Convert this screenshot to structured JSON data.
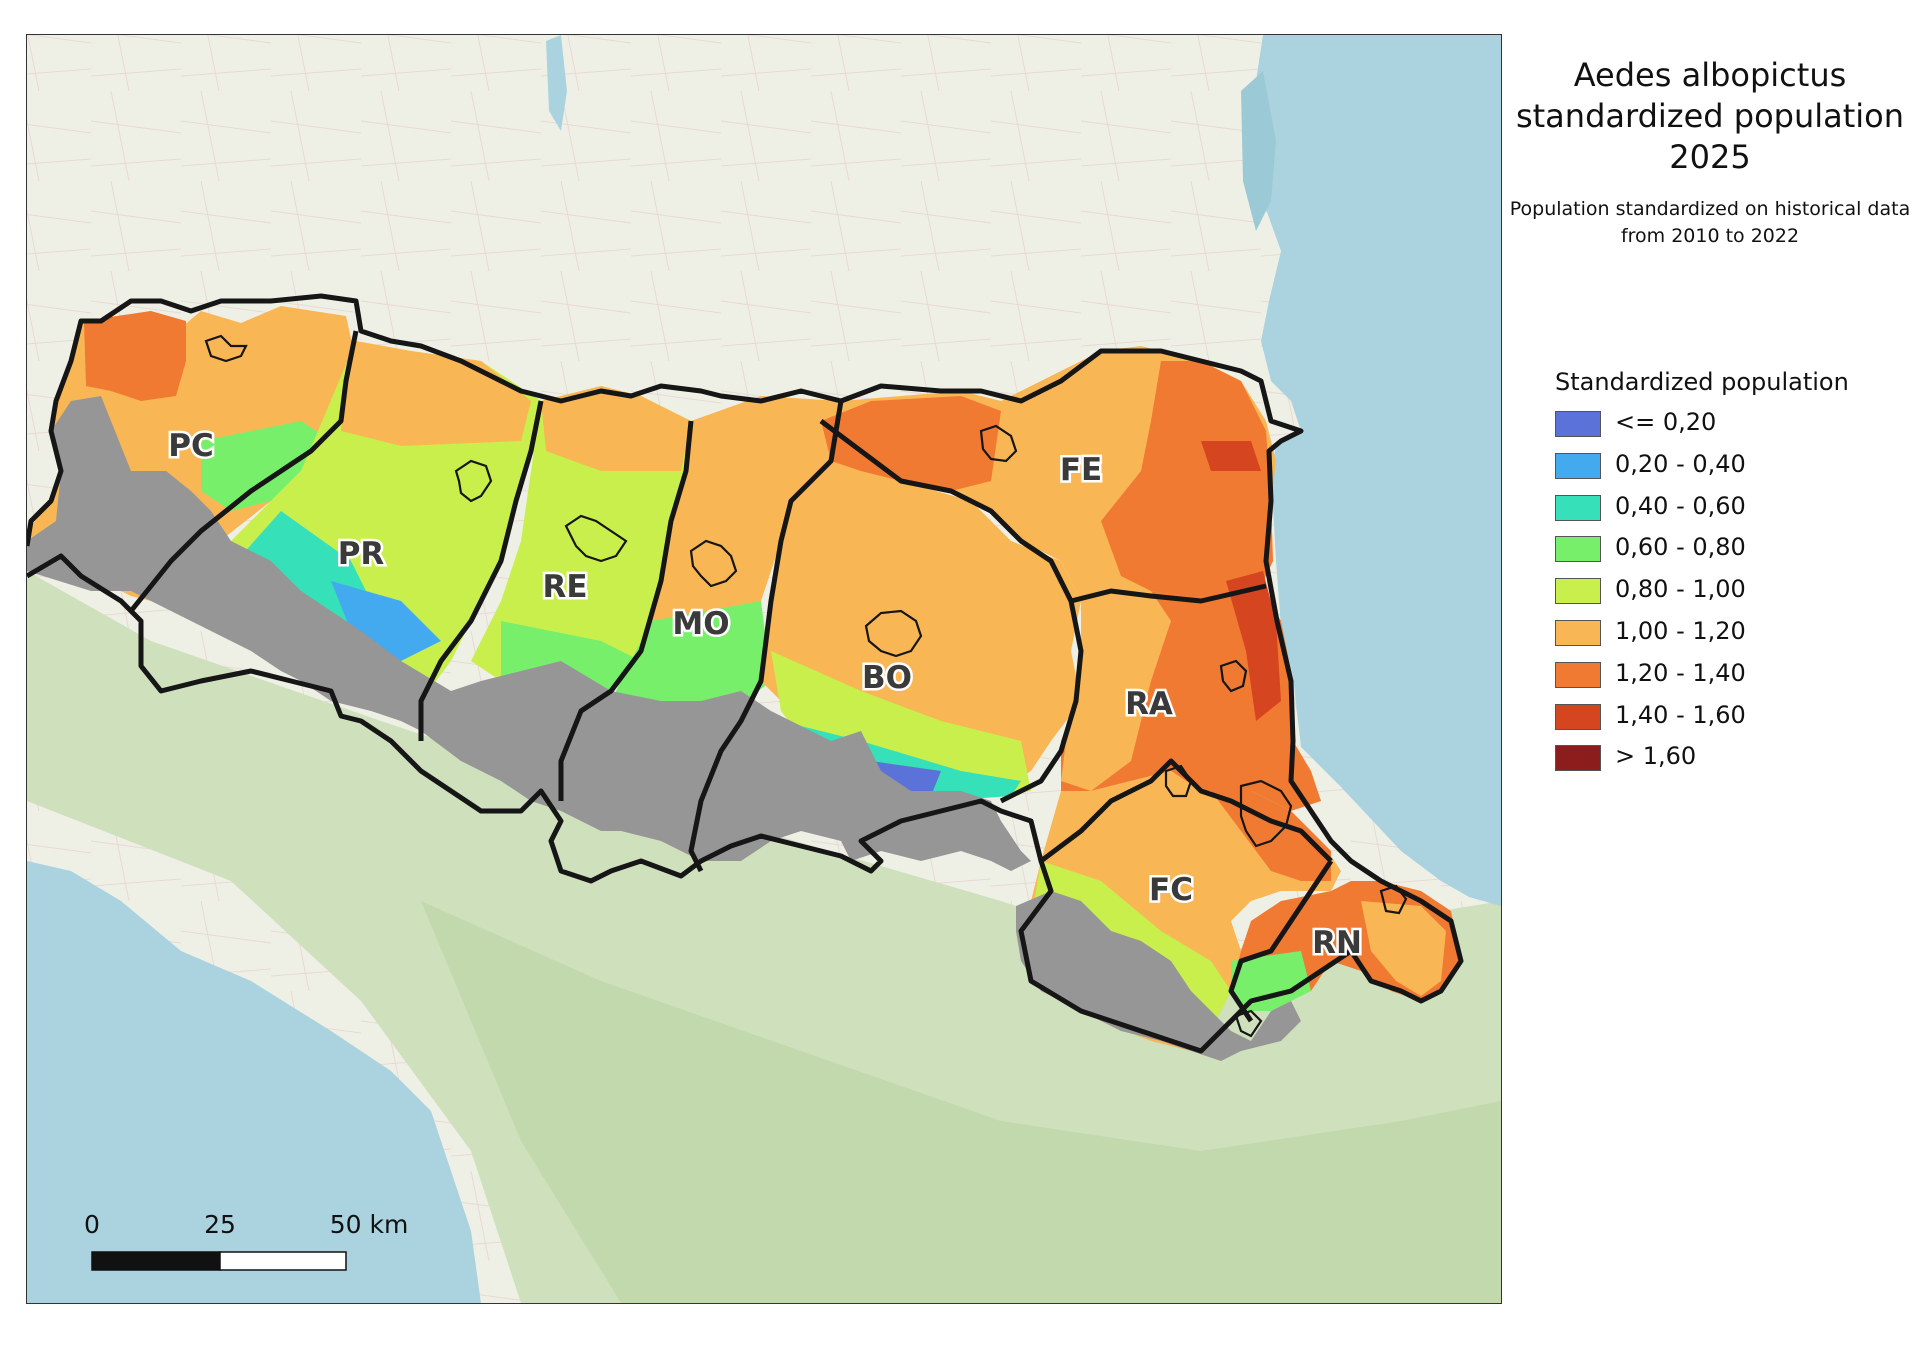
{
  "title": "Aedes albopictus standardized population 2025",
  "subtitle": "Population standardized on historical data from 2010 to 2022",
  "legend": {
    "title": "Standardized population",
    "items": [
      {
        "label": "<= 0,20",
        "color": "#5b73d8"
      },
      {
        "label": "0,20 - 0,40",
        "color": "#44aaf0"
      },
      {
        "label": "0,40 - 0,60",
        "color": "#36e0b8"
      },
      {
        "label": "0,60 - 0,80",
        "color": "#78ef6a"
      },
      {
        "label": "0,80 - 1,00",
        "color": "#c9ef4c"
      },
      {
        "label": "1,00 - 1,20",
        "color": "#f9b655"
      },
      {
        "label": "1,20 - 1,40",
        "color": "#f07a32"
      },
      {
        "label": "1,40 - 1,60",
        "color": "#d44520"
      },
      {
        "label": "> 1,60",
        "color": "#8c1d1d"
      }
    ]
  },
  "no_data_color": "#969696",
  "scalebar": {
    "labels": [
      "0",
      "25",
      "50 km"
    ]
  },
  "provinces": [
    {
      "code": "PC"
    },
    {
      "code": "PR"
    },
    {
      "code": "RE"
    },
    {
      "code": "MO"
    },
    {
      "code": "BO"
    },
    {
      "code": "FE"
    },
    {
      "code": "RA"
    },
    {
      "code": "FC"
    },
    {
      "code": "RN"
    }
  ],
  "colors": {
    "sea": "#aad3df",
    "land": "#eef0e6",
    "boundary": "#161616"
  }
}
